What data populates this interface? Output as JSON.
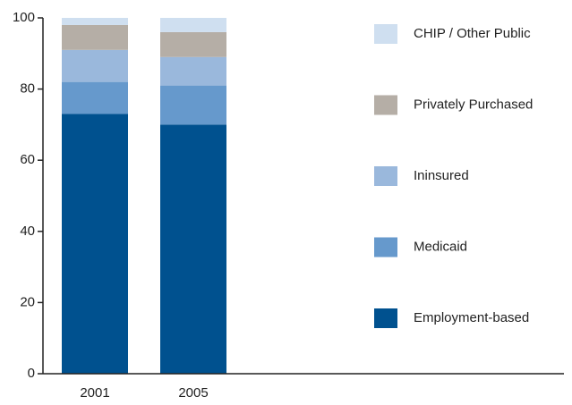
{
  "chart_data": {
    "type": "stacked_bar",
    "categories": [
      "2001",
      "2005"
    ],
    "series": [
      {
        "name": "Employment-based",
        "color": "#00518f",
        "values": [
          73,
          70
        ]
      },
      {
        "name": "Medicaid",
        "color": "#6699cc",
        "values": [
          9,
          11
        ]
      },
      {
        "name": "Ininsured",
        "color": "#9ab8dc",
        "values": [
          9,
          8
        ]
      },
      {
        "name": "Privately Purchased",
        "color": "#b5aea6",
        "values": [
          7,
          7
        ]
      },
      {
        "name": "CHIP / Other Public",
        "color": "#cfdff0",
        "values": [
          2,
          4
        ]
      }
    ],
    "ylim": [
      0,
      100
    ],
    "yticks": [
      0,
      20,
      40,
      60,
      80,
      100
    ],
    "grid": false,
    "legend": "right"
  }
}
